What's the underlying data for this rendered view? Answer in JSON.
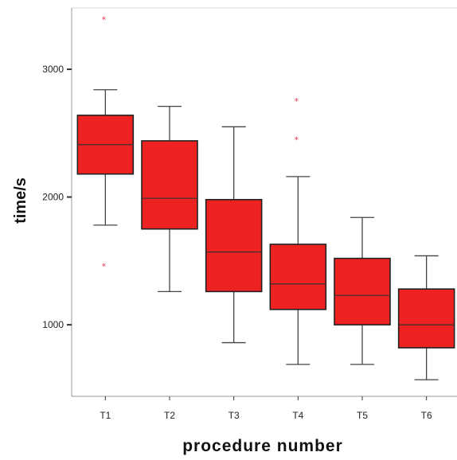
{
  "chart_data": {
    "type": "boxplot",
    "title": "",
    "xlabel": "procedure number",
    "ylabel": "time/s",
    "categories": [
      "T1",
      "T2",
      "T3",
      "T4",
      "T5",
      "T6"
    ],
    "boxes": [
      {
        "min": 1780,
        "q1": 2180,
        "median": 2410,
        "q3": 2640,
        "max": 2840,
        "outliers": [
          3390,
          1460
        ]
      },
      {
        "min": 1260,
        "q1": 1750,
        "median": 1990,
        "q3": 2440,
        "max": 2710,
        "outliers": []
      },
      {
        "min": 860,
        "q1": 1260,
        "median": 1570,
        "q3": 1980,
        "max": 2550,
        "outliers": []
      },
      {
        "min": 690,
        "q1": 1120,
        "median": 1320,
        "q3": 1630,
        "max": 2160,
        "outliers": [
          2750,
          2450
        ]
      },
      {
        "min": 690,
        "q1": 1000,
        "median": 1230,
        "q3": 1520,
        "max": 1840,
        "outliers": []
      },
      {
        "min": 570,
        "q1": 820,
        "median": 1000,
        "q3": 1280,
        "max": 1540,
        "outliers": []
      }
    ],
    "y_ticks": [
      1000,
      2000,
      3000
    ],
    "ylim": [
      440,
      3480
    ],
    "grid": false,
    "colors": {
      "box_fill": "#ef2222",
      "box_stroke": "#222222",
      "whisker": "#444444",
      "outlier": "#e83a5a",
      "axis": "#999999"
    }
  }
}
